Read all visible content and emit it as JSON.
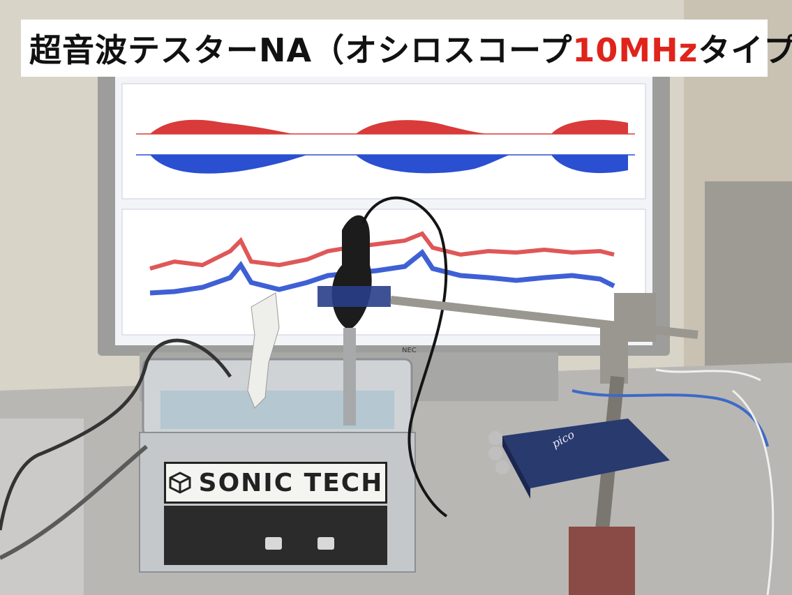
{
  "title": {
    "prefix": "超音波テスターNA（オシロスコープ",
    "highlight": "10MHz",
    "suffix": "タイプ）",
    "highlight_color": "#e0241b"
  },
  "equipment": {
    "cleaner_brand": "SONIC TECH",
    "monitor_brand": "NEC",
    "scope_brand": "pico"
  },
  "colors": {
    "waveform_red": "#d93a3a",
    "waveform_blue": "#2a4fd0",
    "screen_bg": "#f2f4f8"
  }
}
